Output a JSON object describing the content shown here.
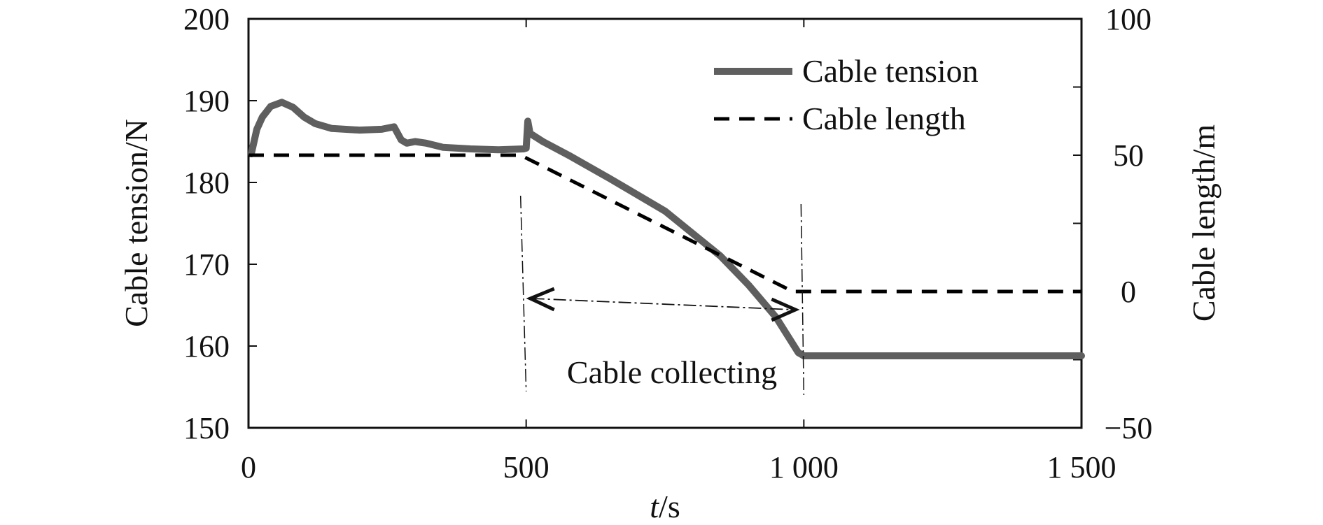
{
  "chart_data": {
    "type": "line",
    "xlabel": {
      "var": "t",
      "unit": "/s"
    },
    "ylabel_left": "Cable tension/N",
    "ylabel_right": "Cable length/m",
    "xlim": [
      0,
      1500
    ],
    "ylim_left": [
      150,
      200
    ],
    "ylim_right": [
      -50,
      100
    ],
    "x_ticks": [
      0,
      500,
      1000,
      1500
    ],
    "x_tick_labels": [
      "0",
      "500",
      "1 000",
      "1 500"
    ],
    "y_left_ticks": [
      150,
      160,
      170,
      180,
      190,
      200
    ],
    "y_left_tick_labels": [
      "150",
      "160",
      "170",
      "180",
      "190",
      "200"
    ],
    "y_right_ticks": [
      -50,
      0,
      50,
      100
    ],
    "y_right_tick_labels": [
      "−50",
      "0",
      "50",
      "100"
    ],
    "grid": false,
    "legend_position": "top-right",
    "series": [
      {
        "name": "Cable tension",
        "axis": "left",
        "style": "solid",
        "color": "#5f5f5f",
        "points": [
          [
            5,
            183.5
          ],
          [
            15,
            186.5
          ],
          [
            25,
            188
          ],
          [
            40,
            189.3
          ],
          [
            60,
            189.8
          ],
          [
            80,
            189.2
          ],
          [
            100,
            188
          ],
          [
            120,
            187.2
          ],
          [
            150,
            186.6
          ],
          [
            200,
            186.4
          ],
          [
            240,
            186.5
          ],
          [
            262,
            186.8
          ],
          [
            275,
            185.2
          ],
          [
            285,
            184.8
          ],
          [
            300,
            185.0
          ],
          [
            320,
            184.8
          ],
          [
            350,
            184.3
          ],
          [
            400,
            184.1
          ],
          [
            450,
            184.0
          ],
          [
            495,
            184.1
          ],
          [
            500,
            184.2
          ],
          [
            503,
            187.5
          ],
          [
            507,
            186.0
          ],
          [
            530,
            185.0
          ],
          [
            580,
            183.2
          ],
          [
            650,
            180.5
          ],
          [
            750,
            176.5
          ],
          [
            850,
            171.0
          ],
          [
            900,
            167.5
          ],
          [
            950,
            163.5
          ],
          [
            990,
            159.2
          ],
          [
            1000,
            158.8
          ],
          [
            1200,
            158.8
          ],
          [
            1500,
            158.8
          ]
        ]
      },
      {
        "name": "Cable length",
        "axis": "right",
        "style": "dashed",
        "color": "#000000",
        "points": [
          [
            0,
            50
          ],
          [
            490,
            50
          ],
          [
            980,
            0
          ],
          [
            1500,
            0
          ]
        ]
      }
    ],
    "annotations": [
      {
        "text": "Cable collecting",
        "x_range": [
          500,
          1000
        ]
      }
    ]
  },
  "legend": {
    "items": [
      "Cable tension",
      "Cable length"
    ]
  }
}
